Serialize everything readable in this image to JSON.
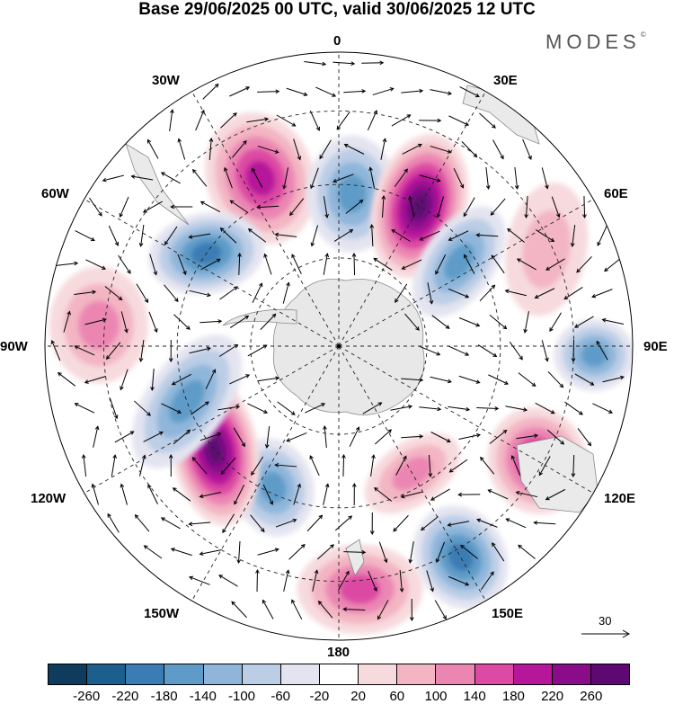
{
  "header": {
    "title": "Base 29/06/2025 00 UTC, valid 30/06/2025 12 UTC",
    "brand": "MODES",
    "brand_mark": "©"
  },
  "map": {
    "projection": "south polar stereographic",
    "longitude_labels": {
      "top": "0",
      "top_right": "30E",
      "right_upper": "60E",
      "right": "90E",
      "right_lower": "120E",
      "bottom_right": "150E",
      "bottom": "180",
      "bottom_left": "150W",
      "left_lower": "120W",
      "left": "90W",
      "left_upper": "60W",
      "top_left": "30W"
    },
    "reference_vector_label": "30",
    "centers": [
      {
        "sign": "positive",
        "lon": -25,
        "intensity": 180
      },
      {
        "sign": "negative",
        "lon": -55,
        "intensity": -180
      },
      {
        "sign": "negative",
        "lon": 5,
        "intensity": -160
      },
      {
        "sign": "positive",
        "lon": 30,
        "intensity": 260
      },
      {
        "sign": "negative",
        "lon": 55,
        "intensity": -140
      },
      {
        "sign": "negative",
        "lon": 92,
        "intensity": -140
      },
      {
        "sign": "positive",
        "lon": 120,
        "intensity": 180
      },
      {
        "sign": "negative",
        "lon": 150,
        "intensity": -200
      },
      {
        "sign": "positive",
        "lon": 175,
        "intensity": 140
      },
      {
        "sign": "negative",
        "lon": -155,
        "intensity": -140
      },
      {
        "sign": "positive",
        "lon": -130,
        "intensity": 260
      },
      {
        "sign": "negative",
        "lon": -110,
        "intensity": -140
      },
      {
        "sign": "positive",
        "lon": -85,
        "intensity": 100
      },
      {
        "sign": "positive",
        "lon": 65,
        "intensity": 60
      },
      {
        "sign": "positive",
        "lon": 150,
        "intensity": 100
      }
    ]
  },
  "colorbar": {
    "ticks": [
      "-260",
      "-220",
      "-180",
      "-140",
      "-100",
      "-60",
      "-20",
      "20",
      "60",
      "100",
      "140",
      "180",
      "220",
      "260"
    ],
    "colors": [
      "#0f3b5c",
      "#1c5f8f",
      "#3a7cb3",
      "#5f9bc8",
      "#8fb6da",
      "#bccde6",
      "#e3e4f0",
      "#ffffff",
      "#f7dadd",
      "#f3b5c3",
      "#eb86b2",
      "#dc4aa3",
      "#b5169a",
      "#8a0c8a",
      "#5e0873"
    ]
  }
}
